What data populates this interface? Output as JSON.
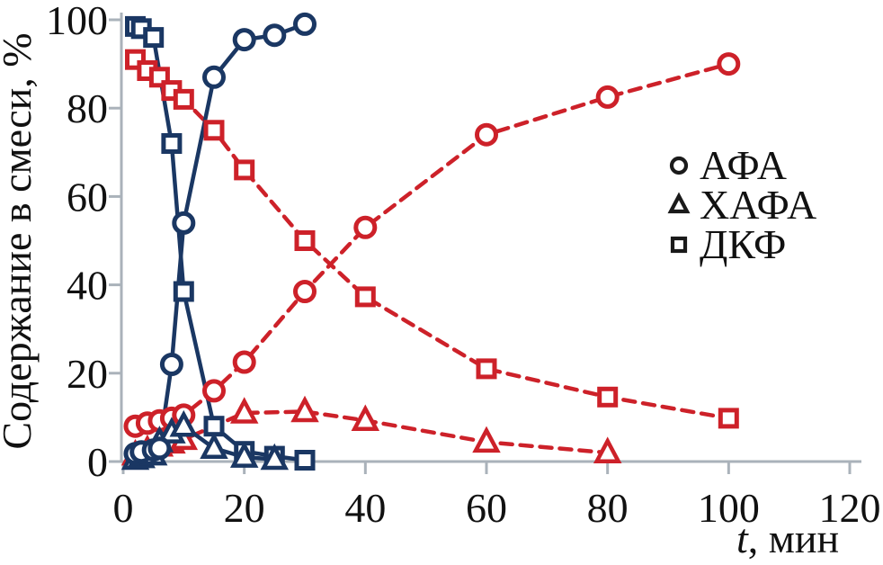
{
  "chart_data": {
    "type": "line",
    "title": "",
    "xlabel": {
      "italic": "t",
      "rest": ", мин"
    },
    "ylabel": "Содержание в смеси, %",
    "xlim": [
      0,
      120
    ],
    "ylim": [
      0,
      100
    ],
    "x_ticks": [
      0,
      20,
      40,
      60,
      80,
      100,
      120
    ],
    "y_ticks": [
      0,
      20,
      40,
      60,
      80,
      100
    ],
    "grid": false,
    "legend_position": "right",
    "legend": [
      {
        "marker": "circle",
        "label": "АФА"
      },
      {
        "marker": "triangle",
        "label": "ХАФА"
      },
      {
        "marker": "square",
        "label": "ДКФ"
      }
    ],
    "colors": {
      "solid_series": "#1a3763",
      "dashed_series": "#cd2129",
      "axis": "#aab2ba",
      "text": "#111111",
      "legend_marker": "#1a1a1a"
    },
    "series": [
      {
        "key": "dkf-dashed",
        "name": "ДКФ",
        "marker": "square",
        "line": "dashed",
        "color": "#cd2129",
        "points": [
          [
            2,
            91
          ],
          [
            4,
            88.5
          ],
          [
            6,
            87
          ],
          [
            8,
            84
          ],
          [
            10,
            82
          ],
          [
            15,
            75
          ],
          [
            20,
            66
          ],
          [
            30,
            50
          ],
          [
            40,
            37.3
          ],
          [
            60,
            21
          ],
          [
            80,
            14.6
          ],
          [
            100,
            9.8
          ]
        ]
      },
      {
        "key": "afa-dashed",
        "name": "АФА",
        "marker": "circle",
        "line": "dashed",
        "color": "#cd2129",
        "points": [
          [
            2,
            8
          ],
          [
            4,
            8.7
          ],
          [
            6,
            9.2
          ],
          [
            8,
            9.8
          ],
          [
            10,
            10.5
          ],
          [
            15,
            16
          ],
          [
            20,
            22.5
          ],
          [
            30,
            38.5
          ],
          [
            40,
            53
          ],
          [
            60,
            74
          ],
          [
            80,
            82.5
          ],
          [
            100,
            90
          ]
        ]
      },
      {
        "key": "hafa-dashed",
        "name": "ХАФА",
        "marker": "triangle",
        "line": "dashed",
        "color": "#cd2129",
        "points": [
          [
            2,
            1.5
          ],
          [
            4,
            2.5
          ],
          [
            6,
            3.5
          ],
          [
            8,
            4.2
          ],
          [
            10,
            5
          ],
          [
            20,
            11
          ],
          [
            30,
            11.3
          ],
          [
            40,
            9.3
          ],
          [
            60,
            4.4
          ],
          [
            80,
            2
          ]
        ]
      },
      {
        "key": "dkf-solid",
        "name": "ДКФ",
        "marker": "square",
        "line": "solid",
        "color": "#1a3763",
        "points": [
          [
            2,
            98.5
          ],
          [
            3,
            98
          ],
          [
            5,
            96
          ],
          [
            8,
            72
          ],
          [
            10,
            38.5
          ],
          [
            15,
            8
          ],
          [
            20,
            2.3
          ],
          [
            25,
            1.2
          ],
          [
            30,
            0.3
          ]
        ]
      },
      {
        "key": "hafa-solid",
        "name": "ХАФА",
        "marker": "triangle",
        "line": "solid",
        "color": "#1a3763",
        "points": [
          [
            2,
            0.5
          ],
          [
            3,
            0.9
          ],
          [
            5,
            1.5
          ],
          [
            6,
            4.5
          ],
          [
            8,
            6.5
          ],
          [
            10,
            8
          ],
          [
            15,
            3
          ],
          [
            20,
            1
          ],
          [
            25,
            0.5
          ]
        ]
      },
      {
        "key": "afa-solid",
        "name": "АФА",
        "marker": "circle",
        "line": "solid",
        "color": "#1a3763",
        "points": [
          [
            2,
            1.8
          ],
          [
            3,
            2.2
          ],
          [
            5,
            2.6
          ],
          [
            6,
            3
          ],
          [
            8,
            22
          ],
          [
            10,
            54
          ],
          [
            15,
            87
          ],
          [
            20,
            95.5
          ],
          [
            25,
            96.5
          ],
          [
            30,
            99
          ]
        ]
      }
    ]
  }
}
